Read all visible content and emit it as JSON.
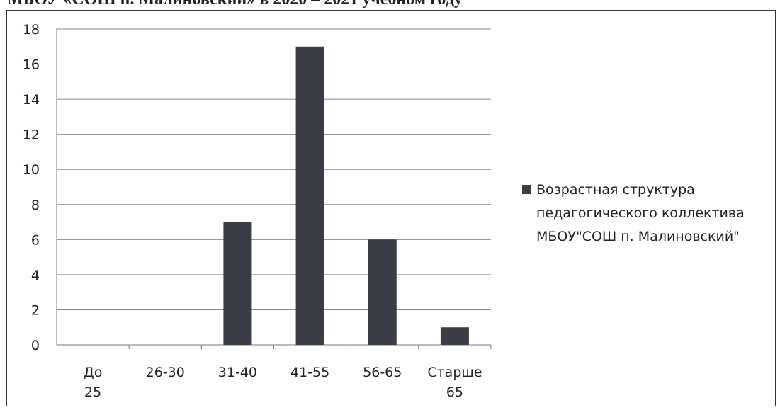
{
  "caption": "МБОУ «СОШ п. Малиновский» в 2020 – 2021 учебном году",
  "chart_data": {
    "type": "bar",
    "categories": [
      "До 25",
      "26-30",
      "31-40",
      "41-55",
      "56-65",
      "Старше 65"
    ],
    "series": [
      {
        "name": "Возрастная структура педагогического коллектива МБОУ\"СОШ п. Малиновский\"",
        "values": [
          0,
          0,
          7,
          17,
          6,
          1
        ],
        "color": "#3a3d45"
      }
    ],
    "ylim": [
      0,
      18
    ],
    "yticks": [
      0,
      2,
      4,
      6,
      8,
      10,
      12,
      14,
      16,
      18
    ],
    "grid": true,
    "legend": "right"
  }
}
